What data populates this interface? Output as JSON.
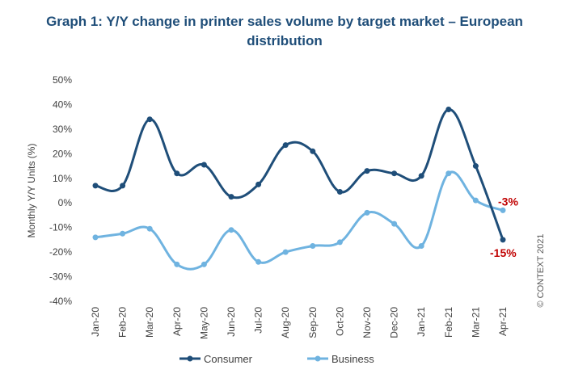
{
  "chart_data": {
    "type": "line",
    "title_line1": "Graph 1: Y/Y change in printer sales volume by target market – European",
    "title_line2": "distribution",
    "ylabel": "Monthly Y/Y Units (%)",
    "xlabel": "",
    "ylim": [
      -40,
      50
    ],
    "yticks": [
      50,
      40,
      30,
      20,
      10,
      0,
      -10,
      -20,
      -30,
      -40
    ],
    "yticklabels": [
      "50%",
      "40%",
      "30%",
      "20%",
      "10%",
      "0%",
      "-10%",
      "-20%",
      "-30%",
      "-40%"
    ],
    "categories": [
      "Jan-20",
      "Feb-20",
      "Mar-20",
      "Apr-20",
      "May-20",
      "Jun-20",
      "Jul-20",
      "Aug-20",
      "Sep-20",
      "Oct-20",
      "Nov-20",
      "Dec-20",
      "Jan-21",
      "Feb-21",
      "Mar-21",
      "Apr-21"
    ],
    "grid": false,
    "legend_position": "bottom",
    "series": [
      {
        "name": "Consumer",
        "color": "#1f4e79",
        "values": [
          7,
          7,
          34,
          12,
          15.5,
          2.5,
          7.5,
          23.5,
          21,
          4.5,
          13,
          12,
          11,
          38,
          15,
          -15
        ]
      },
      {
        "name": "Business",
        "color": "#6fb3e0",
        "values": [
          -14,
          -12.5,
          -10.5,
          -25,
          -25,
          -11,
          -24,
          -20,
          -17.5,
          -16,
          -4,
          -8.5,
          -17.5,
          12,
          1,
          -3
        ]
      }
    ],
    "annotations": [
      {
        "text": "-3%",
        "series": 1,
        "index": 15,
        "color": "#c00000"
      },
      {
        "text": "-15%",
        "series": 0,
        "index": 15,
        "color": "#c00000"
      }
    ],
    "credit": "© CONTEXT 2021"
  }
}
